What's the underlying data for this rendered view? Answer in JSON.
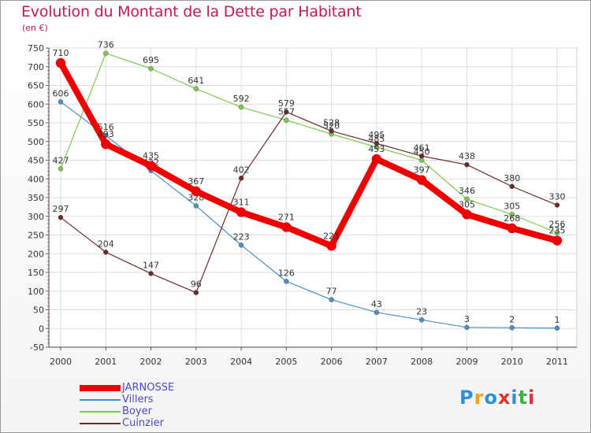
{
  "title": "Evolution du Montant de la Dette par Habitant",
  "unit": "(en €)",
  "logo_text": "Proxiti",
  "logo_colors": [
    "#2f8fd8",
    "#f0a020",
    "#2f8fd8",
    "#e03030",
    "#2f8fd8",
    "#40b040",
    "#e03030"
  ],
  "chart_data": {
    "type": "line",
    "x": [
      "2000",
      "2001",
      "2002",
      "2003",
      "2004",
      "2005",
      "2006",
      "2007",
      "2008",
      "2009",
      "2010",
      "2011"
    ],
    "ylim": [
      -50,
      750
    ],
    "yticks": [
      -50,
      0,
      50,
      100,
      150,
      200,
      250,
      300,
      350,
      400,
      450,
      500,
      550,
      600,
      650,
      700,
      750
    ],
    "grid": true,
    "legend_position": "bottom-left",
    "series": [
      {
        "name": "Villers",
        "color": "#4a90c8",
        "values": [
          606,
          516,
          422,
          328,
          223,
          126,
          77,
          43,
          23,
          3,
          2,
          1
        ],
        "width": 1.2,
        "marker": 3
      },
      {
        "name": "Boyer",
        "color": "#7ec850",
        "values": [
          427,
          736,
          695,
          641,
          592,
          557,
          520,
          485,
          450,
          346,
          305,
          256
        ],
        "width": 1.2,
        "marker": 3
      },
      {
        "name": "Cuinzier",
        "color": "#6b2a2a",
        "values": [
          297,
          204,
          147,
          96,
          402,
          579,
          528,
          495,
          461,
          438,
          380,
          330
        ],
        "width": 1.2,
        "marker": 3
      },
      {
        "name": "JARNOSSE",
        "color": "#ee0000",
        "values": [
          710,
          493,
          435,
          367,
          311,
          271,
          221,
          453,
          397,
          305,
          268,
          235
        ],
        "width": 8,
        "marker": 6
      }
    ],
    "legend_order": [
      "JARNOSSE",
      "Villers",
      "Boyer",
      "Cuinzier"
    ]
  }
}
